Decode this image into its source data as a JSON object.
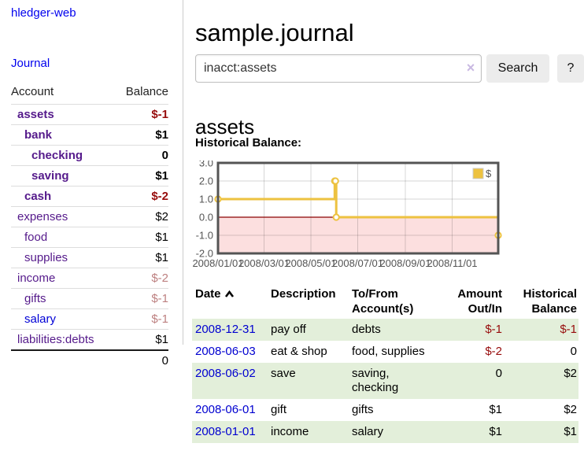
{
  "app": {
    "title": "hledger-web"
  },
  "colors": {
    "link_purple": "#551a8b",
    "link_blue": "#0000d6",
    "date_link": "#0000d0",
    "neg_strong": "#970c0c",
    "neg_light": "#bd8080",
    "stripe_green": "#e3efda",
    "chart_line": "#edc240",
    "chart_negative_fill": "#fcdfdf",
    "chart_zero_line": "#8b0000",
    "chart_border": "#545454",
    "chart_tick_text": "#545454"
  },
  "sidebar": {
    "journal_link": "Journal",
    "table": {
      "headers": {
        "account": "Account",
        "balance": "Balance"
      },
      "rows": [
        {
          "label": "assets",
          "depth": 1,
          "bold": true,
          "link": "purple",
          "balance": "$-1",
          "neg": "strong"
        },
        {
          "label": "bank",
          "depth": 2,
          "bold": true,
          "link": "purple",
          "balance": "$1",
          "neg": "none"
        },
        {
          "label": "checking",
          "depth": 3,
          "bold": true,
          "link": "purple",
          "balance": "0",
          "neg": "none"
        },
        {
          "label": "saving",
          "depth": 3,
          "bold": true,
          "link": "purple",
          "balance": "$1",
          "neg": "none"
        },
        {
          "label": "cash",
          "depth": 2,
          "bold": true,
          "link": "purple",
          "balance": "$-2",
          "neg": "strong"
        },
        {
          "label": "expenses",
          "depth": 1,
          "bold": false,
          "link": "purple",
          "balance": "$2",
          "neg": "none"
        },
        {
          "label": "food",
          "depth": 2,
          "bold": false,
          "link": "purple",
          "balance": "$1",
          "neg": "none"
        },
        {
          "label": "supplies",
          "depth": 2,
          "bold": false,
          "link": "purple",
          "balance": "$1",
          "neg": "none"
        },
        {
          "label": "income",
          "depth": 1,
          "bold": false,
          "link": "purple",
          "balance": "$-2",
          "neg": "light"
        },
        {
          "label": "gifts",
          "depth": 2,
          "bold": false,
          "link": "purple",
          "balance": "$-1",
          "neg": "light"
        },
        {
          "label": "salary",
          "depth": 2,
          "bold": false,
          "link": "blue",
          "balance": "$-1",
          "neg": "light"
        },
        {
          "label": "liabilities:debts",
          "depth": 1,
          "bold": false,
          "link": "purple",
          "balance": "$1",
          "neg": "none"
        }
      ],
      "total": "0"
    }
  },
  "header": {
    "title": "sample.journal"
  },
  "search": {
    "value": "inacct:assets",
    "clear_icon": "×",
    "button_label": "Search",
    "help_label": "?"
  },
  "account_page": {
    "heading": "assets",
    "chart_label": "Historical Balance:"
  },
  "chart_data": {
    "type": "line",
    "style": "step",
    "title": "Historical Balance",
    "series": [
      {
        "name": "$",
        "points": [
          [
            "2008-01-01",
            1
          ],
          [
            "2008-06-01",
            2
          ],
          [
            "2008-06-02",
            2
          ],
          [
            "2008-06-03",
            0
          ],
          [
            "2008-12-31",
            -1
          ]
        ]
      }
    ],
    "x_ticks": [
      "2008/01/01",
      "2008/03/01",
      "2008/05/01",
      "2008/07/01",
      "2008/09/01",
      "2008/11/01"
    ],
    "y_ticks": [
      3.0,
      2.0,
      1.0,
      0.0,
      -1.0,
      -2.0
    ],
    "xlim": [
      "2008-01-01",
      "2008-12-31"
    ],
    "ylim": [
      -2,
      3
    ],
    "grid": true,
    "legend_position": "top-right",
    "legend_label": "$"
  },
  "register": {
    "headers": {
      "date": "Date",
      "description": "Description",
      "accounts": "To/From\nAccount(s)",
      "amount": "Amount\nOut/In",
      "balance": "Historical\nBalance"
    },
    "rows": [
      {
        "date": "2008-12-31",
        "description": "pay off",
        "accounts": "debts",
        "amount": "$-1",
        "amount_neg": true,
        "balance": "$-1",
        "balance_neg": true,
        "shaded": true
      },
      {
        "date": "2008-06-03",
        "description": "eat & shop",
        "accounts": "food, supplies",
        "amount": "$-2",
        "amount_neg": true,
        "balance": "0",
        "balance_neg": false,
        "shaded": false
      },
      {
        "date": "2008-06-02",
        "description": "save",
        "accounts": "saving, checking",
        "amount": "0",
        "amount_neg": false,
        "balance": "$2",
        "balance_neg": false,
        "shaded": true
      },
      {
        "date": "2008-06-01",
        "description": "gift",
        "accounts": "gifts",
        "amount": "$1",
        "amount_neg": false,
        "balance": "$2",
        "balance_neg": false,
        "shaded": false
      },
      {
        "date": "2008-01-01",
        "description": "income",
        "accounts": "salary",
        "amount": "$1",
        "amount_neg": false,
        "balance": "$1",
        "balance_neg": false,
        "shaded": true
      }
    ]
  }
}
